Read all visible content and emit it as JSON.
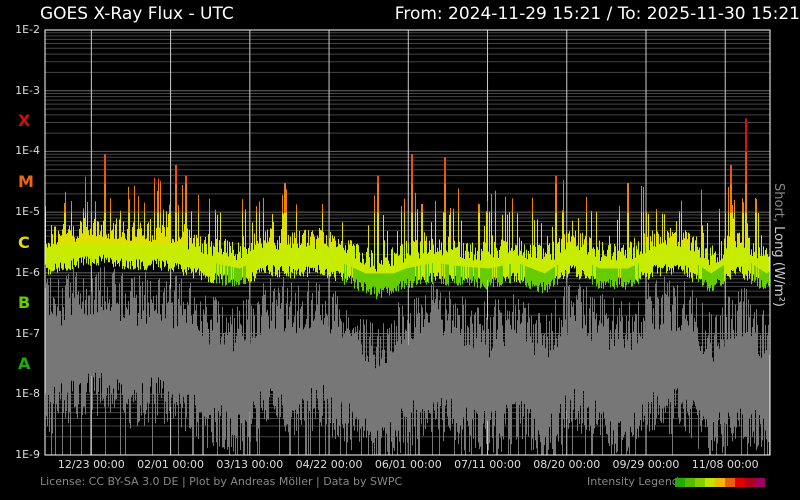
{
  "header": {
    "title": "GOES X-Ray Flux - UTC",
    "range": "From: 2024-11-29 15:21  /  To: 2025-11-30 15:21"
  },
  "side_label": {
    "short": "Short,",
    "long": " Long (W/m²)"
  },
  "footer": {
    "license": "License: CC BY-SA 3.0 DE | Plot by Andreas Möller | Data by SWPC",
    "legend_label": "Intensity Legend"
  },
  "legend_colors": [
    "#22aa00",
    "#55bb00",
    "#88cc00",
    "#c8e000",
    "#f0b800",
    "#e86010",
    "#e00000",
    "#b00020",
    "#a00060"
  ],
  "chart_data": {
    "type": "line",
    "title": "GOES X-Ray Flux - UTC",
    "ylabel": "Short, Long (W/m²)",
    "y_scale": "log",
    "ylim": [
      1e-09,
      0.01
    ],
    "xlim": [
      "2024-11-29 15:21",
      "2025-11-30 15:21"
    ],
    "y_ticks": [
      "1E-2",
      "1E-3",
      "1E-4",
      "1E-5",
      "1E-6",
      "1E-7",
      "1E-8",
      "1E-9"
    ],
    "flare_classes": [
      {
        "label": "X",
        "color": "#cc1111"
      },
      {
        "label": "M",
        "color": "#ee6611"
      },
      {
        "label": "C",
        "color": "#dddd00"
      },
      {
        "label": "B",
        "color": "#66cc00"
      },
      {
        "label": "A",
        "color": "#22aa00"
      }
    ],
    "x_ticks": [
      "12/23 00:00",
      "02/01 00:00",
      "03/13 00:00",
      "04/22 00:00",
      "06/01 00:00",
      "07/11 00:00",
      "08/20 00:00",
      "09/29 00:00",
      "11/08 00:00"
    ],
    "x_tick_days": [
      23.4,
      63.4,
      103.4,
      143.4,
      183.4,
      223.4,
      263.4,
      303.4,
      343.4
    ],
    "grid": true,
    "series": [
      {
        "name": "Long",
        "color": "by intensity",
        "baseline_every_14_days": [
          2e-06,
          2.5e-06,
          3e-06,
          2.5e-06,
          2.5e-06,
          2e-06,
          1.5e-06,
          1.2e-06,
          2e-06,
          1.8e-06,
          2e-06,
          1.3e-06,
          8e-07,
          1.2e-06,
          1.5e-06,
          1.3e-06,
          1.2e-06,
          1.5e-06,
          1e-06,
          2e-06,
          1.2e-06,
          1.2e-06,
          2e-06,
          2e-06,
          1e-06,
          2e-06,
          1e-06,
          2e-06
        ],
        "peaks": [
          {
            "date": "2024-12-29",
            "flux": 9e-05
          },
          {
            "date": "2025-02-03",
            "flux": 6e-05
          },
          {
            "date": "2025-02-08",
            "flux": 4e-05
          },
          {
            "date": "2025-03-30",
            "flux": 3e-05
          },
          {
            "date": "2025-05-16",
            "flux": 4e-05
          },
          {
            "date": "2025-06-02",
            "flux": 9e-05
          },
          {
            "date": "2025-06-19",
            "flux": 8e-05
          },
          {
            "date": "2025-08-14",
            "flux": 4e-05
          },
          {
            "date": "2025-09-19",
            "flux": 3e-05
          },
          {
            "date": "2025-11-10",
            "flux": 6e-05
          },
          {
            "date": "2025-11-18",
            "flux": 0.00035
          }
        ]
      },
      {
        "name": "Short",
        "color": "#777777",
        "baseline_every_14_days": [
          5e-08,
          8e-08,
          1e-07,
          6e-08,
          8e-08,
          5e-08,
          3e-08,
          2e-08,
          6e-08,
          5e-08,
          6e-08,
          3e-08,
          1e-08,
          3e-08,
          5e-08,
          3e-08,
          2e-08,
          4e-08,
          1.5e-08,
          6e-08,
          3e-08,
          2e-08,
          6e-08,
          5e-08,
          1.5e-08,
          5e-08,
          1.5e-08,
          6e-08
        ]
      }
    ]
  }
}
